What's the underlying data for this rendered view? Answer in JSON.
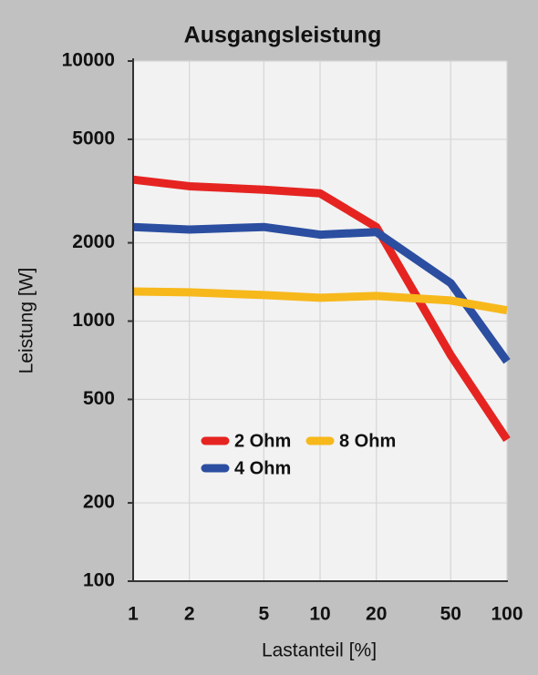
{
  "chart_data": {
    "type": "line",
    "title": "Ausgangsleistung",
    "x_label": "Lastanteil [%]",
    "y_label": "Leistung [W]",
    "x": [
      1,
      2,
      5,
      10,
      20,
      50,
      100
    ],
    "series": [
      {
        "name": "2 Ohm",
        "color": "#e52421",
        "values": [
          3500,
          3300,
          3200,
          3100,
          2300,
          740,
          350
        ]
      },
      {
        "name": "4 Ohm",
        "color": "#2b4ea0",
        "values": [
          2300,
          2250,
          2300,
          2150,
          2200,
          1400,
          700
        ]
      },
      {
        "name": "8 Ohm",
        "color": "#f7b81c",
        "values": [
          1300,
          1290,
          1260,
          1230,
          1250,
          1200,
          1100
        ]
      }
    ],
    "xlim": [
      1,
      100
    ],
    "ylim": [
      100,
      10000
    ],
    "xticks": [
      1,
      2,
      5,
      10,
      20,
      50,
      100
    ],
    "yticks": [
      100,
      200,
      500,
      1000,
      2000,
      5000,
      10000
    ],
    "xscale": "log",
    "yscale": "log",
    "grid": true,
    "legend": "center"
  }
}
